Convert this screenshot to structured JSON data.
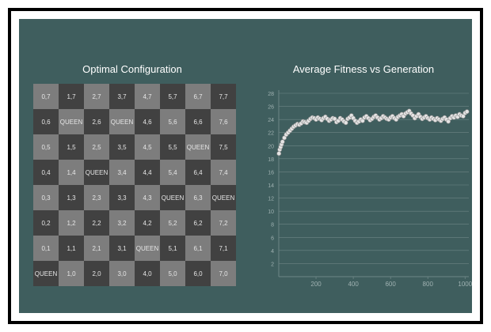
{
  "board": {
    "title": "Optimal Configuration",
    "rows": [
      [
        "0,7",
        "1,7",
        "2,7",
        "3,7",
        "4,7",
        "5,7",
        "6,7",
        "7,7"
      ],
      [
        "0,6",
        "QUEEN",
        "2,6",
        "QUEEN",
        "4,6",
        "5,6",
        "6,6",
        "7,6"
      ],
      [
        "0,5",
        "1,5",
        "2,5",
        "3,5",
        "4,5",
        "5,5",
        "QUEEN",
        "7,5"
      ],
      [
        "0,4",
        "1,4",
        "QUEEN",
        "3,4",
        "4,4",
        "5,4",
        "6,4",
        "7,4"
      ],
      [
        "0,3",
        "1,3",
        "2,3",
        "3,3",
        "4,3",
        "QUEEN",
        "6,3",
        "QUEEN"
      ],
      [
        "0,2",
        "1,2",
        "2,2",
        "3,2",
        "4,2",
        "5,2",
        "6,2",
        "7,2"
      ],
      [
        "0,1",
        "1,1",
        "2,1",
        "3,1",
        "QUEEN",
        "5,1",
        "6,1",
        "7,1"
      ],
      [
        "QUEEN",
        "1,0",
        "2,0",
        "3,0",
        "4,0",
        "5,0",
        "6,0",
        "7,0"
      ]
    ],
    "colors": {
      "light": "#7d7d7d",
      "dark": "#414141",
      "text": "#e6e6e6"
    }
  },
  "chart_data": {
    "type": "scatter",
    "title": "Average Fitness vs Generation",
    "xlabel": "",
    "ylabel": "",
    "xlim": [
      0,
      1020
    ],
    "ylim": [
      0,
      28
    ],
    "x_ticks": [
      200,
      400,
      600,
      800,
      1000
    ],
    "y_ticks": [
      2,
      4,
      6,
      8,
      10,
      12,
      14,
      16,
      18,
      20,
      22,
      24,
      26,
      28
    ],
    "grid": true,
    "x": [
      1,
      5,
      10,
      15,
      20,
      30,
      40,
      50,
      60,
      70,
      80,
      90,
      100,
      110,
      120,
      130,
      140,
      150,
      160,
      170,
      180,
      190,
      200,
      210,
      220,
      230,
      240,
      250,
      260,
      270,
      280,
      290,
      300,
      310,
      320,
      330,
      340,
      350,
      360,
      370,
      380,
      390,
      400,
      410,
      420,
      430,
      440,
      450,
      460,
      470,
      480,
      490,
      500,
      510,
      520,
      530,
      540,
      550,
      560,
      570,
      580,
      590,
      600,
      610,
      620,
      630,
      640,
      650,
      660,
      670,
      680,
      690,
      700,
      710,
      720,
      730,
      740,
      750,
      760,
      770,
      780,
      790,
      800,
      810,
      820,
      830,
      840,
      850,
      860,
      870,
      880,
      890,
      900,
      910,
      920,
      930,
      940,
      950,
      960,
      970,
      980,
      990,
      1000,
      1010
    ],
    "values": [
      18.8,
      19.4,
      19.8,
      20.2,
      20.6,
      21.2,
      21.7,
      22.0,
      22.3,
      22.6,
      22.9,
      23.1,
      23.3,
      23.2,
      23.4,
      23.7,
      23.6,
      23.5,
      23.8,
      24.1,
      24.3,
      24.2,
      24.0,
      24.3,
      24.1,
      23.9,
      24.2,
      24.4,
      24.1,
      23.8,
      24.0,
      24.2,
      24.1,
      23.6,
      23.8,
      24.2,
      24.0,
      23.7,
      23.5,
      24.1,
      24.3,
      24.6,
      24.2,
      23.8,
      23.5,
      23.7,
      24.0,
      23.8,
      24.3,
      24.5,
      24.2,
      23.9,
      24.1,
      24.4,
      24.6,
      24.3,
      24.0,
      24.2,
      24.5,
      24.3,
      24.1,
      24.0,
      24.3,
      24.5,
      24.2,
      24.0,
      24.4,
      24.6,
      24.8,
      24.5,
      24.9,
      25.1,
      25.3,
      24.9,
      24.6,
      24.2,
      24.5,
      24.8,
      24.4,
      24.1,
      24.3,
      24.5,
      24.2,
      24.0,
      24.3,
      24.1,
      23.9,
      24.2,
      24.0,
      23.8,
      24.1,
      24.3,
      24.0,
      23.7,
      24.2,
      24.5,
      24.3,
      24.6,
      24.4,
      24.8,
      24.6,
      24.5,
      25.0,
      25.2
    ]
  },
  "colors": {
    "background": "#3f5e5e",
    "frame": "#000000",
    "grid": "#6e8686",
    "tick_text": "#9fb1b1",
    "marker_fill": "#e4e4e4",
    "marker_stroke": "#8a8a8a"
  }
}
